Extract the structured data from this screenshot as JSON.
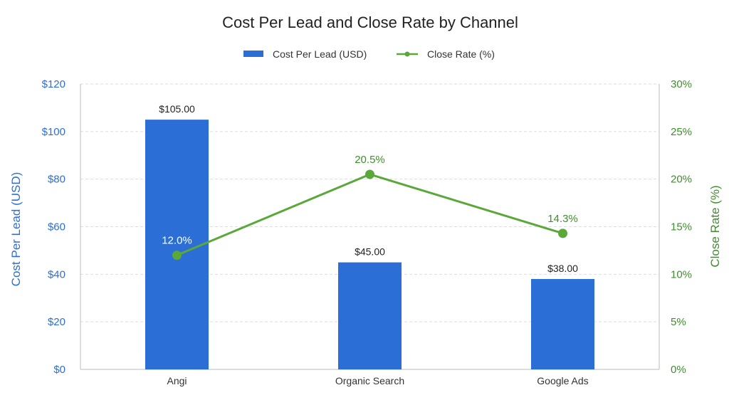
{
  "chart_data": {
    "type": "bar",
    "title": "Cost Per Lead and Close Rate by Channel",
    "categories": [
      "Angi",
      "Organic Search",
      "Google Ads"
    ],
    "series": [
      {
        "name": "Cost Per Lead (USD)",
        "type": "bar",
        "axis": "left",
        "values": [
          105,
          45,
          38
        ],
        "labels": [
          "$105.00",
          "$45.00",
          "$38.00"
        ]
      },
      {
        "name": "Close Rate (%)",
        "type": "line",
        "axis": "right",
        "values": [
          12.0,
          20.5,
          14.3
        ],
        "labels": [
          "12.0%",
          "20.5%",
          "14.3%"
        ]
      }
    ],
    "ylabel": "Cost Per Lead (USD)",
    "y2label": "Close Rate (%)",
    "ylim": [
      0,
      120
    ],
    "y2lim": [
      0,
      30
    ],
    "yticks": [
      "$0",
      "$20",
      "$40",
      "$60",
      "$80",
      "$100",
      "$120"
    ],
    "y2ticks": [
      "0%",
      "5%",
      "10%",
      "15%",
      "20%",
      "25%",
      "30%"
    ],
    "grid": true,
    "legend_position": "top-center",
    "colors": {
      "bar": "#2b6fd6",
      "line": "#5aa83a",
      "left_axis_text": "#2b6fd6",
      "right_axis_text": "#3d8f2a",
      "grid": "#dddddd",
      "axis": "#bbbbbb"
    }
  }
}
